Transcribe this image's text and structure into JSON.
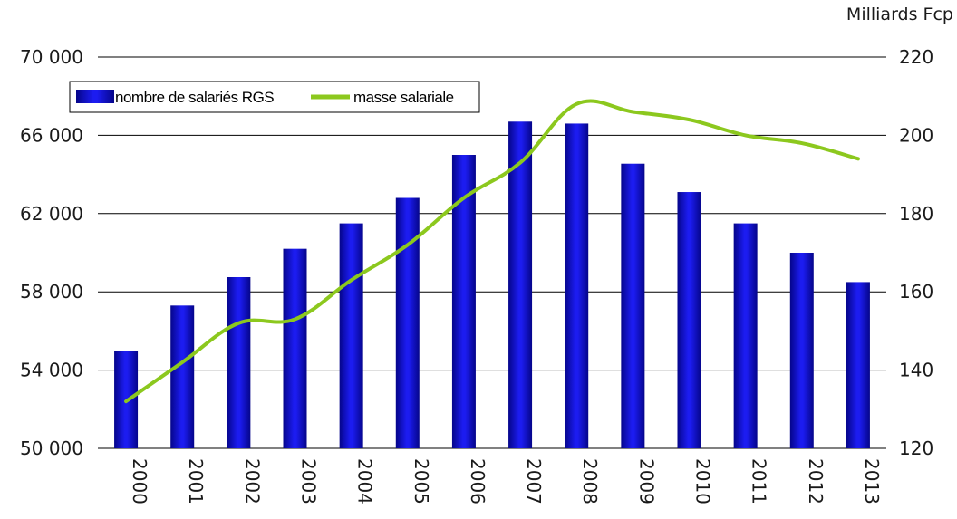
{
  "chart_data": {
    "type": "bar",
    "title": "",
    "xlabel": "",
    "ylabel": "",
    "categories": [
      "2000",
      "2001",
      "2002",
      "2003",
      "2004",
      "2005",
      "2006",
      "2007",
      "2008",
      "2009",
      "2010",
      "2011",
      "2012",
      "2013"
    ],
    "series": [
      {
        "name": "nombre de salariés RGS",
        "chart": "bar",
        "axis": "left",
        "color": "#1010e0",
        "values": [
          55000,
          57300,
          58750,
          60200,
          61500,
          62800,
          65000,
          66700,
          66600,
          64550,
          63100,
          61500,
          60000,
          58500
        ]
      },
      {
        "name": "masse salariale",
        "chart": "line",
        "axis": "right",
        "color": "#8cc81e",
        "values": [
          132,
          142,
          152,
          153,
          163,
          172,
          184,
          193,
          208,
          206,
          204,
          200,
          198,
          194
        ]
      }
    ],
    "ylim": [
      50000,
      70000
    ],
    "y_ticks": [
      "50 000",
      "54 000",
      "58 000",
      "62 000",
      "66 000",
      "70 000"
    ],
    "y_tick_values": [
      50000,
      54000,
      58000,
      62000,
      66000,
      70000
    ],
    "y2lim": [
      120,
      220
    ],
    "y2_ticks": [
      "120",
      "140",
      "160",
      "180",
      "200",
      "220"
    ],
    "y2_tick_values": [
      120,
      140,
      160,
      180,
      200,
      220
    ],
    "y2label": "Milliards Fcp",
    "grid": true,
    "legend": "top-left"
  }
}
